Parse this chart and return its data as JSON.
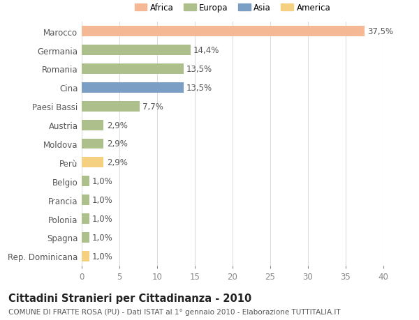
{
  "categories": [
    "Marocco",
    "Germania",
    "Romania",
    "Cina",
    "Paesi Bassi",
    "Austria",
    "Moldova",
    "Perù",
    "Belgio",
    "Francia",
    "Polonia",
    "Spagna",
    "Rep. Dominicana"
  ],
  "values": [
    37.5,
    14.4,
    13.5,
    13.5,
    7.7,
    2.9,
    2.9,
    2.9,
    1.0,
    1.0,
    1.0,
    1.0,
    1.0
  ],
  "labels": [
    "37,5%",
    "14,4%",
    "13,5%",
    "13,5%",
    "7,7%",
    "2,9%",
    "2,9%",
    "2,9%",
    "1,0%",
    "1,0%",
    "1,0%",
    "1,0%",
    "1,0%"
  ],
  "colors": [
    "#F5B895",
    "#ADBF8A",
    "#ADBF8A",
    "#7B9EC4",
    "#ADBF8A",
    "#ADBF8A",
    "#ADBF8A",
    "#F5D080",
    "#ADBF8A",
    "#ADBF8A",
    "#ADBF8A",
    "#ADBF8A",
    "#F5D080"
  ],
  "legend_labels": [
    "Africa",
    "Europa",
    "Asia",
    "America"
  ],
  "legend_colors": [
    "#F5B895",
    "#ADBF8A",
    "#7B9EC4",
    "#F5D080"
  ],
  "title": "Cittadini Stranieri per Cittadinanza - 2010",
  "subtitle": "COMUNE DI FRATTE ROSA (PU) - Dati ISTAT al 1° gennaio 2010 - Elaborazione TUTTITALIA.IT",
  "xlim": [
    0,
    40
  ],
  "xticks": [
    0,
    5,
    10,
    15,
    20,
    25,
    30,
    35,
    40
  ],
  "background_color": "#ffffff",
  "grid_color": "#dddddd",
  "bar_height": 0.55,
  "title_fontsize": 10.5,
  "subtitle_fontsize": 7.5,
  "tick_fontsize": 8.5,
  "label_fontsize": 8.5,
  "legend_fontsize": 8.5
}
